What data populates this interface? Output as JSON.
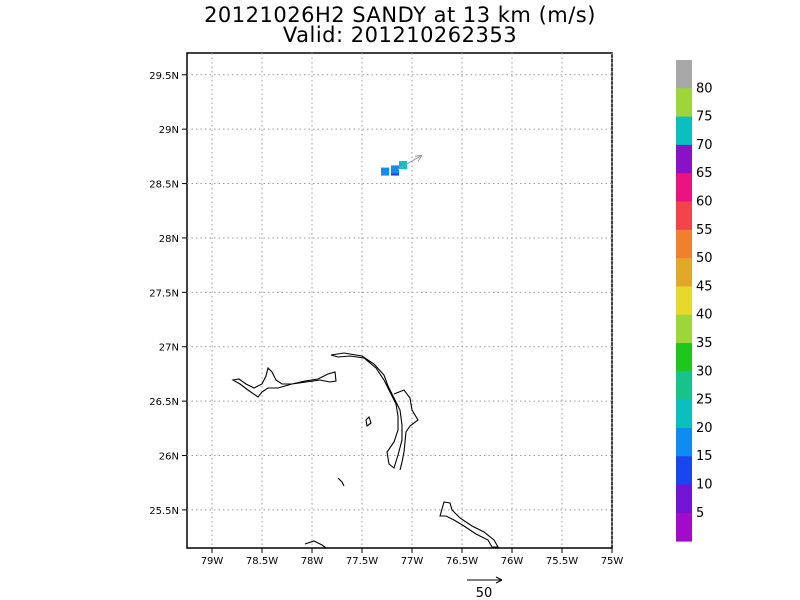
{
  "title": {
    "line1": "20121026H2 SANDY at 13 km (m/s)",
    "line2": "Valid: 201210262353"
  },
  "map": {
    "lat_labels": [
      "29.5N",
      "29N",
      "28.5N",
      "28N",
      "27.5N",
      "27N",
      "26.5N",
      "26N",
      "25.5N"
    ],
    "lon_labels": [
      "79W",
      "78.5W",
      "78W",
      "77.5W",
      "77W",
      "76.5W",
      "76W",
      "75.5W",
      "75W"
    ],
    "lat_values": [
      29.5,
      29.0,
      28.5,
      28.0,
      27.5,
      27.0,
      26.5,
      26.0,
      25.5
    ],
    "lon_values": [
      -79.0,
      -78.5,
      -78.0,
      -77.5,
      -77.0,
      -76.5,
      -76.0,
      -75.5,
      -75.0
    ],
    "lon_range": [
      -79.25,
      -75.0
    ],
    "lat_range": [
      25.15,
      29.7
    ],
    "grid": "dotted",
    "data_cells": [
      {
        "lon": -77.27,
        "lat": 28.61,
        "color": "#0e8cf2"
      },
      {
        "lon": -77.17,
        "lat": 28.61,
        "color": "#1a46f0"
      },
      {
        "lon": -77.17,
        "lat": 28.63,
        "color": "#0e8cf2"
      },
      {
        "lon": -77.09,
        "lat": 28.67,
        "color": "#0bbfbf"
      }
    ],
    "wind_vector": {
      "lon": -77.1,
      "lat": 28.65,
      "direction": "northeast",
      "color": "#999999"
    }
  },
  "colorbar": {
    "labels": [
      "80",
      "75",
      "70",
      "65",
      "60",
      "55",
      "50",
      "45",
      "40",
      "35",
      "30",
      "25",
      "20",
      "15",
      "10",
      "5"
    ],
    "colors": [
      "#a8a8a8",
      "#9ed63a",
      "#0bbfbf",
      "#8a12c6",
      "#e8137e",
      "#f2434a",
      "#f0802e",
      "#e0a728",
      "#e6d92c",
      "#9ed63a",
      "#1ec71e",
      "#17c38a",
      "#0bbfbf",
      "#0e8cf2",
      "#1a46f0",
      "#7014d6",
      "#a10bcc"
    ]
  },
  "reference_vector": {
    "label": "50"
  }
}
